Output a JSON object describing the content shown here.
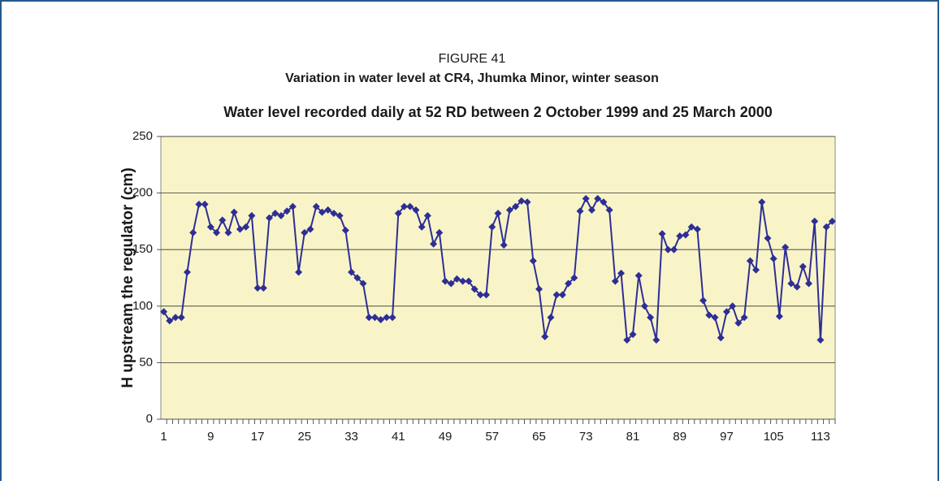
{
  "chart_data": {
    "type": "line",
    "figure_label": "FIGURE 41",
    "title": "Variation in water level at CR4, Jhumka Minor, winter season",
    "subtitle": "Water level recorded daily at 52 RD between 2 October 1999 and 25 March 2000",
    "y_label": "H upstream the regulator (cm)",
    "x": [
      1,
      2,
      3,
      4,
      5,
      6,
      7,
      8,
      9,
      10,
      11,
      12,
      13,
      14,
      15,
      16,
      17,
      18,
      19,
      20,
      21,
      22,
      23,
      24,
      25,
      26,
      27,
      28,
      29,
      30,
      31,
      32,
      33,
      34,
      35,
      36,
      37,
      38,
      39,
      40,
      41,
      42,
      43,
      44,
      45,
      46,
      47,
      48,
      49,
      50,
      51,
      52,
      53,
      54,
      55,
      56,
      57,
      58,
      59,
      60,
      61,
      62,
      63,
      64,
      65,
      66,
      67,
      68,
      69,
      70,
      71,
      72,
      73,
      74,
      75,
      76,
      77,
      78,
      79,
      80,
      81,
      82,
      83,
      84,
      85,
      86,
      87,
      88,
      89,
      90,
      91,
      92,
      93,
      94,
      95,
      96,
      97,
      98,
      99,
      100,
      101,
      102,
      103,
      104,
      105,
      106,
      107,
      108,
      109,
      110,
      111,
      112,
      113,
      114,
      115
    ],
    "series": [
      {
        "name": "Water level",
        "color": "#2e2e96",
        "values": [
          95,
          87,
          90,
          90,
          130,
          165,
          190,
          190,
          170,
          165,
          176,
          165,
          183,
          168,
          170,
          180,
          116,
          116,
          178,
          182,
          180,
          184,
          188,
          130,
          165,
          168,
          188,
          183,
          185,
          182,
          180,
          167,
          130,
          125,
          120,
          90,
          90,
          88,
          90,
          90,
          182,
          188,
          188,
          185,
          170,
          180,
          155,
          165,
          122,
          120,
          124,
          122,
          122,
          115,
          110,
          110,
          170,
          182,
          154,
          185,
          188,
          193,
          192,
          140,
          115,
          73,
          90,
          110,
          110,
          120,
          125,
          184,
          195,
          185,
          195,
          192,
          185,
          122,
          129,
          70,
          75,
          127,
          100,
          90,
          70,
          164,
          150,
          150,
          162,
          163,
          170,
          168,
          105,
          92,
          90,
          72,
          95,
          100,
          85,
          90,
          140,
          132,
          192,
          160,
          142,
          91,
          152,
          120,
          117,
          135,
          120,
          175,
          70,
          170,
          175
        ]
      }
    ],
    "xlim": [
      0.5,
      115.5
    ],
    "xticks": [
      1,
      9,
      17,
      25,
      33,
      41,
      49,
      57,
      65,
      73,
      81,
      89,
      97,
      105,
      113
    ],
    "ylim": [
      0,
      250
    ],
    "yticks": [
      0,
      50,
      100,
      150,
      200,
      250
    ],
    "grid": true
  }
}
